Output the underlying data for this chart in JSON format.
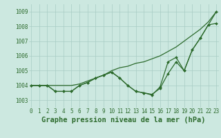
{
  "xlabel": "Graphe pression niveau de la mer (hPa)",
  "bg_color": "#cce8e0",
  "line_color": "#2d6b2d",
  "marker_color": "#2d6b2d",
  "xlim": [
    -0.3,
    23.3
  ],
  "ylim": [
    1002.5,
    1009.5
  ],
  "yticks": [
    1003,
    1004,
    1005,
    1006,
    1007,
    1008,
    1009
  ],
  "xticks": [
    0,
    1,
    2,
    3,
    4,
    5,
    6,
    7,
    8,
    9,
    10,
    11,
    12,
    13,
    14,
    15,
    16,
    17,
    18,
    19,
    20,
    21,
    22,
    23
  ],
  "series1": [
    1004.0,
    1004.0,
    1004.0,
    1004.0,
    1004.0,
    1004.0,
    1004.1,
    1004.3,
    1004.5,
    1004.7,
    1005.0,
    1005.2,
    1005.3,
    1005.5,
    1005.6,
    1005.8,
    1006.0,
    1006.3,
    1006.6,
    1007.0,
    1007.4,
    1007.8,
    1008.3,
    1009.0
  ],
  "series2": [
    1004.0,
    1004.0,
    1004.0,
    1003.6,
    1003.6,
    1003.6,
    1004.0,
    1004.2,
    1004.5,
    1004.7,
    1004.9,
    1004.5,
    1004.0,
    1003.6,
    1003.5,
    1003.4,
    1003.8,
    1004.8,
    1005.6,
    1005.0,
    1006.4,
    1007.2,
    1008.1,
    1008.2
  ],
  "series3": [
    1004.0,
    1004.0,
    1004.0,
    1003.6,
    1003.6,
    1003.6,
    1004.0,
    1004.2,
    1004.5,
    1004.7,
    1004.9,
    1004.5,
    1004.0,
    1003.6,
    1003.5,
    1003.35,
    1003.9,
    1005.6,
    1005.9,
    1005.0,
    1006.4,
    1007.2,
    1008.1,
    1009.0
  ],
  "xlabel_color": "#2d6b2d",
  "xlabel_fontsize": 7.5,
  "tick_fontsize": 5.5,
  "tick_color": "#2d6b2d",
  "figwidth": 3.2,
  "figheight": 2.0,
  "dpi": 100
}
